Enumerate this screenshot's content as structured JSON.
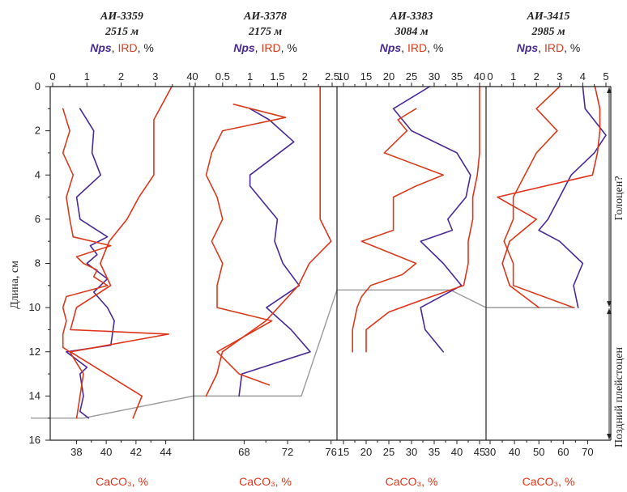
{
  "chart_data": {
    "type": "line",
    "y_axis": {
      "label": "Длина, см",
      "range": [
        0,
        16
      ],
      "ticks": [
        0,
        2,
        4,
        6,
        8,
        10,
        12,
        14,
        16
      ],
      "inverted": true
    },
    "stage_labels": [
      {
        "text": "Голоцен?",
        "range": [
          0,
          10
        ]
      },
      {
        "text": "Поздний плейстоцен",
        "range": [
          10,
          16
        ]
      }
    ],
    "colors": {
      "nps": "#4a2a96",
      "ird": "#d83c1c",
      "caco3": "#e0341a",
      "axis": "#222222",
      "boundary": "#9a9a9a"
    },
    "panels": [
      {
        "core": "АИ-3359",
        "depth": "2515 м",
        "top_label": {
          "nps": "Nps",
          "sep": ", ",
          "ird": "IRD",
          "unit": ", %"
        },
        "top_ticks": [
          "0",
          "1",
          "2",
          "3",
          "4"
        ],
        "top_range": [
          0,
          4
        ],
        "bottom_label": "CaCO₃, %",
        "bottom_ticks": [
          "38",
          "40",
          "42",
          "44"
        ],
        "bottom_tick_values": [
          38,
          40,
          42,
          44
        ],
        "bottom_range": [
          36.4,
          45.6
        ],
        "boundary_depth": 15,
        "series": [
          {
            "name": "Nps",
            "key": "nps",
            "axis": "top",
            "points": [
              [
                0.8,
                1
              ],
              [
                1.2,
                2
              ],
              [
                1.15,
                3
              ],
              [
                1.4,
                4
              ],
              [
                0.7,
                5
              ],
              [
                0.8,
                6
              ],
              [
                1.6,
                6.8
              ],
              [
                1.1,
                7.2
              ],
              [
                1.3,
                7.6
              ],
              [
                1.0,
                8
              ],
              [
                1.6,
                8.7
              ],
              [
                1.2,
                9.3
              ],
              [
                1.6,
                10
              ],
              [
                1.8,
                10.6
              ],
              [
                1.7,
                11.7
              ],
              [
                0.4,
                12
              ],
              [
                1.0,
                12.7
              ],
              [
                0.8,
                13
              ],
              [
                0.9,
                14
              ],
              [
                0.8,
                14.7
              ],
              [
                1.05,
                15
              ]
            ]
          },
          {
            "name": "IRD",
            "key": "ird",
            "axis": "top",
            "points": [
              [
                0.3,
                1
              ],
              [
                0.5,
                2
              ],
              [
                0.3,
                3
              ],
              [
                0.6,
                4
              ],
              [
                0.4,
                5
              ],
              [
                0.5,
                6
              ],
              [
                0.6,
                6.8
              ],
              [
                1.7,
                7.2
              ],
              [
                0.7,
                7.7
              ],
              [
                0.9,
                8
              ],
              [
                1.3,
                8.3
              ],
              [
                1.2,
                8.6
              ],
              [
                1.6,
                9
              ],
              [
                0.4,
                9.5
              ],
              [
                0.3,
                10
              ],
              [
                0.4,
                10.6
              ],
              [
                0.3,
                11.2
              ],
              [
                0.3,
                11.8
              ],
              [
                0.5,
                12
              ],
              [
                0.9,
                13
              ],
              [
                0.8,
                14
              ],
              [
                0.7,
                15
              ]
            ]
          },
          {
            "name": "CaCO₃",
            "key": "caco3",
            "axis": "bottom",
            "points": [
              [
                44.4,
                0
              ],
              [
                43.6,
                1
              ],
              [
                43.2,
                1.5
              ],
              [
                43.2,
                3
              ],
              [
                43.2,
                4
              ],
              [
                42.2,
                5
              ],
              [
                41.4,
                6
              ],
              [
                40.2,
                7
              ],
              [
                39.6,
                8
              ],
              [
                40.3,
                9
              ],
              [
                38,
                10
              ],
              [
                37.6,
                11
              ],
              [
                44.2,
                11.2
              ],
              [
                37.6,
                12
              ],
              [
                42.4,
                14
              ],
              [
                41.8,
                15
              ]
            ]
          }
        ]
      },
      {
        "core": "АИ-3378",
        "depth": "2175 м",
        "top_label": {
          "nps": "Nps",
          "sep": ", ",
          "ird": "IRD",
          "unit": ", %"
        },
        "top_ticks": [
          "0",
          "0.5",
          "1",
          "1.5",
          "2",
          "2.5"
        ],
        "top_range": [
          0,
          2.5
        ],
        "bottom_label": "CaCO₃, %",
        "bottom_ticks": [
          "68",
          "72",
          "76"
        ],
        "bottom_tick_values": [
          68,
          72,
          76
        ],
        "bottom_range": [
          63.5,
          76.1
        ],
        "boundary_depth": 14,
        "series": [
          {
            "name": "Nps",
            "key": "nps",
            "axis": "top",
            "points": [
              [
                1.0,
                1
              ],
              [
                1.35,
                1.5
              ],
              [
                1.8,
                2.5
              ],
              [
                1.0,
                4
              ],
              [
                1.0,
                4.5
              ],
              [
                1.5,
                6
              ],
              [
                1.45,
                7
              ],
              [
                1.6,
                8
              ],
              [
                1.9,
                9
              ],
              [
                1.3,
                10
              ],
              [
                1.75,
                11
              ],
              [
                2.1,
                12
              ],
              [
                0.85,
                13
              ],
              [
                0.8,
                14
              ]
            ]
          },
          {
            "name": "IRD",
            "key": "ird",
            "axis": "top",
            "points": [
              [
                0.7,
                0.8
              ],
              [
                1.65,
                1.4
              ],
              [
                0.5,
                2
              ],
              [
                0.3,
                3
              ],
              [
                0.2,
                4
              ],
              [
                0.4,
                5
              ],
              [
                0.5,
                6
              ],
              [
                0.3,
                7
              ],
              [
                0.5,
                8
              ],
              [
                0.4,
                9
              ],
              [
                0.4,
                10
              ],
              [
                1.4,
                10.6
              ],
              [
                0.4,
                12
              ],
              [
                0.8,
                13
              ],
              [
                1.35,
                13.5
              ]
            ]
          },
          {
            "name": "CaCO₃",
            "key": "caco3",
            "axis": "bottom",
            "points": [
              [
                75,
                0
              ],
              [
                75,
                6
              ],
              [
                76,
                7
              ],
              [
                74,
                8
              ],
              [
                73,
                9
              ],
              [
                70,
                10.6
              ],
              [
                66,
                12
              ],
              [
                65.5,
                13
              ],
              [
                64.5,
                14
              ]
            ]
          }
        ]
      },
      {
        "core": "АИ-3383",
        "depth": "3084 м",
        "top_label": {
          "nps": "Nps",
          "sep": ", ",
          "ird": "IRD",
          "unit": ", %"
        },
        "top_ticks": [
          "10",
          "15",
          "20",
          "25",
          "30",
          "35",
          "40"
        ],
        "top_range": [
          10,
          40
        ],
        "bottom_label": "CaCO₃, %",
        "bottom_ticks": [
          "15",
          "20",
          "25",
          "30",
          "35",
          "40",
          "45"
        ],
        "bottom_tick_values": [
          15,
          20,
          25,
          30,
          35,
          40,
          45
        ],
        "bottom_range": [
          15,
          45
        ],
        "boundary_depth": 9.2,
        "series": [
          {
            "name": "Nps",
            "key": "nps",
            "axis": "top",
            "points": [
              [
                29,
                0
              ],
              [
                21,
                1
              ],
              [
                25,
                2
              ],
              [
                35,
                3
              ],
              [
                38,
                4
              ],
              [
                37,
                5
              ],
              [
                33,
                6
              ],
              [
                34,
                6.5
              ],
              [
                27,
                7
              ],
              [
                32,
                8
              ],
              [
                36,
                9
              ],
              [
                27,
                10
              ],
              [
                28,
                11
              ],
              [
                32,
                12
              ]
            ]
          },
          {
            "name": "IRD",
            "key": "ird",
            "axis": "top",
            "points": [
              [
                26,
                1
              ],
              [
                22,
                1.5
              ],
              [
                24,
                2
              ],
              [
                19,
                3
              ],
              [
                32,
                4
              ],
              [
                26,
                4.5
              ],
              [
                21,
                5
              ],
              [
                21,
                6
              ],
              [
                21,
                6.5
              ],
              [
                14,
                7
              ],
              [
                26,
                8
              ],
              [
                23,
                8.5
              ],
              [
                16,
                9
              ],
              [
                14,
                9.5
              ],
              [
                13,
                10
              ],
              [
                12,
                11
              ],
              [
                12,
                12
              ]
            ]
          },
          {
            "name": "CaCO₃",
            "key": "caco3",
            "axis": "bottom",
            "points": [
              [
                45,
                0
              ],
              [
                45,
                3
              ],
              [
                44.5,
                4
              ],
              [
                43.5,
                5
              ],
              [
                43.5,
                6
              ],
              [
                42.5,
                7
              ],
              [
                42.5,
                8
              ],
              [
                41.5,
                9
              ],
              [
                33,
                9.6
              ],
              [
                25,
                10.2
              ],
              [
                20,
                11
              ],
              [
                20,
                12
              ]
            ]
          }
        ]
      },
      {
        "core": "АИ-3415",
        "depth": "2985 м",
        "top_label": {
          "nps": "Nps",
          "sep": ", ",
          "ird": "IRD",
          "unit": ", %"
        },
        "top_ticks": [
          "0",
          "1",
          "2",
          "3",
          "4",
          "5"
        ],
        "top_range": [
          0,
          5
        ],
        "bottom_label": "CaCO₃, %",
        "bottom_ticks": [
          "30",
          "40",
          "50",
          "60",
          "70"
        ],
        "bottom_tick_values": [
          30,
          40,
          50,
          60,
          70
        ],
        "bottom_range": [
          30,
          77.5
        ],
        "boundary_depth": 10,
        "series": [
          {
            "name": "Nps",
            "key": "nps",
            "axis": "top",
            "points": [
              [
                4.0,
                0
              ],
              [
                4.1,
                1
              ],
              [
                5.0,
                2.2
              ],
              [
                4.5,
                3
              ],
              [
                3.5,
                4
              ],
              [
                3.0,
                5
              ],
              [
                2.5,
                6
              ],
              [
                2.1,
                6.5
              ],
              [
                3.0,
                7
              ],
              [
                4.0,
                8
              ],
              [
                3.6,
                9
              ],
              [
                3.8,
                10
              ]
            ]
          },
          {
            "name": "IRD",
            "key": "ird",
            "axis": "top",
            "points": [
              [
                3.0,
                0
              ],
              [
                2.0,
                1
              ],
              [
                2.9,
                2
              ],
              [
                2.0,
                3
              ],
              [
                1.5,
                4
              ],
              [
                1.0,
                5
              ],
              [
                1.0,
                6
              ],
              [
                0.6,
                7
              ],
              [
                1.0,
                8
              ],
              [
                1.0,
                9
              ],
              [
                3.6,
                10
              ]
            ]
          },
          {
            "name": "CaCO₃",
            "key": "caco3",
            "axis": "bottom",
            "points": [
              [
                73,
                0
              ],
              [
                75,
                1
              ],
              [
                75,
                2
              ],
              [
                74,
                3
              ],
              [
                72,
                4
              ],
              [
                33,
                5
              ],
              [
                49,
                6
              ],
              [
                38,
                7
              ],
              [
                35,
                8
              ],
              [
                38,
                9
              ],
              [
                50,
                10
              ]
            ]
          }
        ]
      }
    ]
  }
}
